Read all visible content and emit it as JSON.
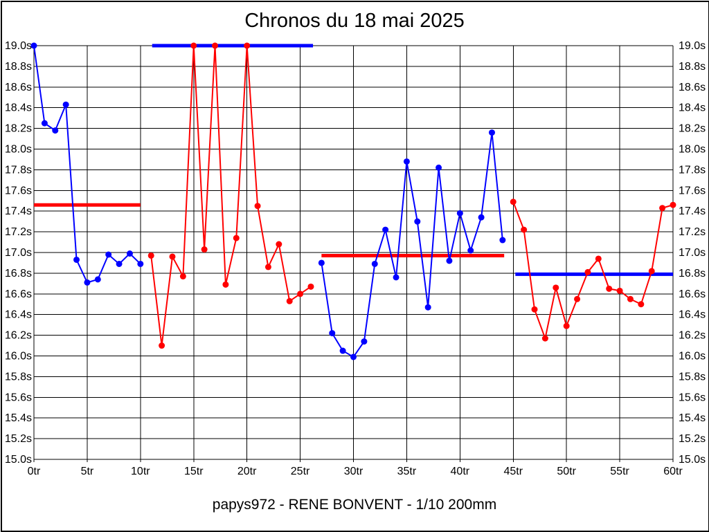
{
  "page": {
    "title": "Chronos du 18 mai 2025",
    "caption": "papys972 - RENE BONVENT - 1/10 200mm"
  },
  "chart_data": {
    "type": "line",
    "title": "Chronos du 18 mai 2025",
    "subtitle": "papys972 - RENE BONVENT - 1/10 200mm",
    "x_unit": "tr",
    "y_unit": "s",
    "xlim": [
      0,
      60
    ],
    "ylim": [
      15.0,
      19.0
    ],
    "grid": true,
    "legend": "none",
    "x_ticks": [
      0,
      5,
      10,
      15,
      20,
      25,
      30,
      35,
      40,
      45,
      50,
      55,
      60
    ],
    "x_tick_labels": [
      "0tr",
      "5tr",
      "10tr",
      "15tr",
      "20tr",
      "25tr",
      "30tr",
      "35tr",
      "40tr",
      "45tr",
      "50tr",
      "55tr",
      "60tr"
    ],
    "y_ticks": [
      19.0,
      18.8,
      18.6,
      18.4,
      18.2,
      18.0,
      17.8,
      17.6,
      17.4,
      17.2,
      17.0,
      16.8,
      16.6,
      16.4,
      16.2,
      16.0,
      15.8,
      15.6,
      15.4,
      15.2,
      15.0
    ],
    "y_tick_labels": [
      "19.0s",
      "18.8s",
      "18.6s",
      "18.4s",
      "18.2s",
      "18.0s",
      "17.8s",
      "17.6s",
      "17.4s",
      "17.2s",
      "17.0s",
      "16.8s",
      "16.6s",
      "16.4s",
      "16.2s",
      "16.0s",
      "15.8s",
      "15.6s",
      "15.4s",
      "15.2s",
      "15.0s"
    ],
    "colors": {
      "blue": "#0000ff",
      "red": "#ff0000"
    },
    "series": [
      {
        "name": "laps-serie-1",
        "color": "#0000ff",
        "x": [
          0,
          1,
          2,
          3,
          4,
          5,
          6,
          7,
          8,
          9,
          10
        ],
        "y": [
          19.0,
          18.25,
          18.18,
          18.43,
          16.93,
          16.71,
          16.74,
          16.98,
          16.89,
          16.99,
          16.89
        ]
      },
      {
        "name": "laps-serie-2",
        "color": "#ff0000",
        "x": [
          11,
          12,
          13,
          14,
          15,
          16,
          17,
          18,
          19,
          20,
          21,
          22,
          23,
          24,
          25,
          26
        ],
        "y": [
          16.97,
          16.1,
          16.96,
          16.77,
          19.0,
          17.03,
          19.0,
          16.69,
          17.14,
          19.0,
          17.45,
          16.86,
          17.08,
          16.53,
          16.6,
          16.67
        ]
      },
      {
        "name": "laps-serie-3",
        "color": "#0000ff",
        "x": [
          27,
          28,
          29,
          30,
          31,
          32,
          33,
          34,
          35,
          36,
          37,
          38,
          39,
          40,
          41,
          42,
          43,
          44
        ],
        "y": [
          16.9,
          16.22,
          16.05,
          15.99,
          16.14,
          16.89,
          17.22,
          16.76,
          17.88,
          17.3,
          16.47,
          17.82,
          16.92,
          17.38,
          17.02,
          17.34,
          18.16,
          17.12
        ]
      },
      {
        "name": "laps-serie-4",
        "color": "#ff0000",
        "x": [
          45,
          46,
          47,
          48,
          49,
          50,
          51,
          52,
          53,
          54,
          55,
          56,
          57,
          58,
          59,
          60
        ],
        "y": [
          17.49,
          17.22,
          16.45,
          16.17,
          16.66,
          16.29,
          16.55,
          16.81,
          16.94,
          16.65,
          16.63,
          16.55,
          16.5,
          16.82,
          17.43,
          17.46
        ]
      }
    ],
    "reference_lines": [
      {
        "name": "reference-line-1",
        "color": "#ff0000",
        "x1": 0,
        "x2": 10,
        "y": 17.46
      },
      {
        "name": "reference-line-2",
        "color": "#0000ff",
        "x1": 11.1,
        "x2": 26.2,
        "y": 19.0
      },
      {
        "name": "reference-line-3",
        "color": "#ff0000",
        "x1": 27,
        "x2": 44.15,
        "y": 16.97
      },
      {
        "name": "reference-line-4",
        "color": "#0000ff",
        "x1": 45.2,
        "x2": 60,
        "y": 16.79
      }
    ]
  }
}
